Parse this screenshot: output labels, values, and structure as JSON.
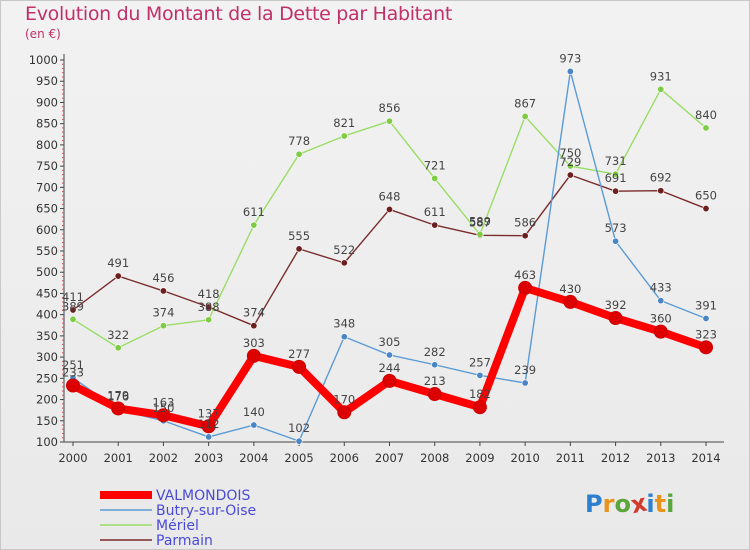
{
  "header": {
    "title": "Evolution du Montant de la Dette par Habitant",
    "unit": "(en €)"
  },
  "brand": {
    "letters": [
      "P",
      "r",
      "o",
      "x",
      "i",
      "t",
      "i"
    ],
    "colors": [
      "#2e7fd0",
      "#e8931b",
      "#5aa63c",
      "#d23a2c",
      "#2e7fd0",
      "#e8931b",
      "#5aa63c"
    ]
  },
  "chart_data": {
    "type": "line",
    "title": "Evolution du Montant de la Dette par Habitant",
    "ylabel": "(en €)",
    "xlabel": "",
    "ylim": [
      100,
      1000
    ],
    "yticks": [
      100,
      150,
      200,
      250,
      300,
      350,
      400,
      450,
      500,
      550,
      600,
      650,
      700,
      750,
      800,
      850,
      900,
      950,
      1000
    ],
    "grid": false,
    "legend_position": "bottom-left",
    "categories": [
      "2000",
      "2001",
      "2002",
      "2003",
      "2004",
      "2005",
      "2006",
      "2007",
      "2008",
      "2009",
      "2010",
      "2011",
      "2012",
      "2013",
      "2014"
    ],
    "series": [
      {
        "name": "VALMONDOIS",
        "color": "#ff0000",
        "marker": "#dd0000",
        "values": [
          233,
          179,
          163,
          137,
          303,
          277,
          170,
          244,
          213,
          182,
          463,
          430,
          392,
          360,
          323
        ]
      },
      {
        "name": "Butry-sur-Oise",
        "color": "#5b9bd5",
        "marker": "#4a86c5",
        "values": [
          251,
          176,
          150,
          112,
          140,
          102,
          348,
          305,
          282,
          257,
          239,
          973,
          573,
          433,
          391
        ]
      },
      {
        "name": "Mériel",
        "color": "#99dd66",
        "marker": "#7dcc44",
        "values": [
          389,
          322,
          374,
          388,
          611,
          778,
          821,
          856,
          721,
          589,
          867,
          750,
          731,
          931,
          840
        ]
      },
      {
        "name": "Parmain",
        "color": "#7a2b2b",
        "marker": "#6b1f1f",
        "values": [
          411,
          491,
          456,
          418,
          374,
          555,
          522,
          648,
          611,
          587,
          586,
          729,
          691,
          692,
          650
        ]
      }
    ]
  }
}
